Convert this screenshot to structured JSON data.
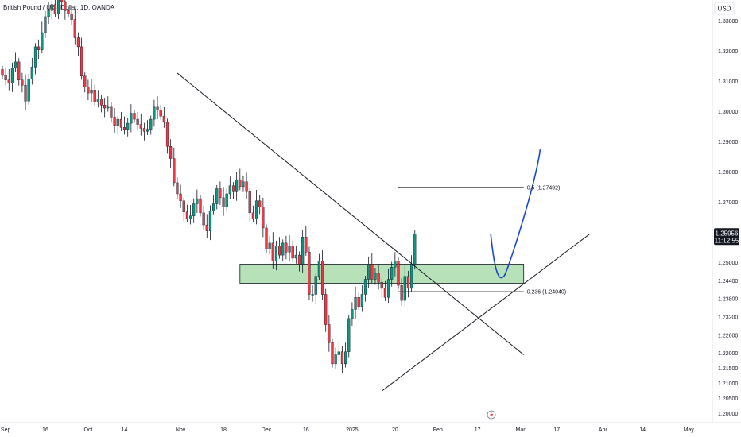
{
  "header": {
    "title": "British Pound / U.S. Dollar, 1D, OANDA"
  },
  "axis": {
    "currency": "USD",
    "last_price": "1.25956",
    "countdown": "11:12:55",
    "y_ticks": [
      "1.33000",
      "1.32000",
      "1.31000",
      "1.30000",
      "1.29000",
      "1.28000",
      "1.27000",
      "1.26000",
      "1.25000",
      "1.24400",
      "1.23800",
      "1.23200",
      "1.22600",
      "1.22000",
      "1.21500",
      "1.21000",
      "1.20500",
      "1.20000"
    ],
    "x_ticks": [
      "Sep",
      "16",
      "Oct",
      "14",
      "Nov",
      "18",
      "Dec",
      "16",
      "2025",
      "20",
      "Feb",
      "17",
      "Mar",
      "17",
      "Apr",
      "14",
      "May"
    ]
  },
  "colors": {
    "up": "#089981",
    "down": "#f23645",
    "zone_fill": "#b7e1b9",
    "projection": "#1848cc",
    "price_tag": "#131722"
  },
  "fib_levels": [
    {
      "label": "0.5 (1.27492)"
    },
    {
      "label": "0.236 (1.24040)"
    }
  ],
  "footer": {
    "timezone_icon": "lightning-icon"
  },
  "chart_data": {
    "type": "candlestick",
    "title": "British Pound / U.S. Dollar, 1D, OANDA",
    "ylabel": "USD",
    "ylim": [
      1.197,
      1.337
    ],
    "last_price": 1.25956,
    "closes": [
      1.312,
      1.3105,
      1.3095,
      1.3145,
      1.3165,
      1.3105,
      1.3088,
      1.3035,
      1.3108,
      1.3148,
      1.3215,
      1.3205,
      1.3262,
      1.3315,
      1.3335,
      1.3355,
      1.3325,
      1.3372,
      1.3365,
      1.3335,
      1.3325,
      1.3305,
      1.3245,
      1.3215,
      1.3118,
      1.3082,
      1.3062,
      1.3072,
      1.3032,
      1.3042,
      1.3022,
      1.3012,
      1.3015,
      1.2982,
      1.2955,
      1.2975,
      1.2948,
      1.2942,
      1.2962,
      1.2995,
      1.2975,
      1.2958,
      1.2945,
      1.2935,
      1.2942,
      1.2975,
      1.3015,
      1.3005,
      1.2985,
      1.2965,
      1.2885,
      1.2845,
      1.2765,
      1.2728,
      1.2705,
      1.2668,
      1.2645,
      1.2655,
      1.2695,
      1.2712,
      1.2665,
      1.2625,
      1.2605,
      1.2672,
      1.2695,
      1.2745,
      1.2715,
      1.2685,
      1.2728,
      1.2755,
      1.2735,
      1.2775,
      1.2752,
      1.2768,
      1.2735,
      1.2665,
      1.2645,
      1.2705,
      1.2685,
      1.2615,
      1.2545,
      1.2565,
      1.2505,
      1.2555,
      1.2525,
      1.2565,
      1.2535,
      1.2555,
      1.2515,
      1.2525,
      1.2495,
      1.2585,
      1.2535,
      1.2395,
      1.2395,
      1.2455,
      1.2505,
      1.2395,
      1.2295,
      1.2235,
      1.2165,
      1.2195,
      1.2205,
      1.2165,
      1.2205,
      1.2315,
      1.2345,
      1.2385,
      1.2355,
      1.2395,
      1.2445,
      1.2495,
      1.2445,
      1.2465,
      1.2435,
      1.2415,
      1.2385,
      1.2445,
      1.2485,
      1.2505,
      1.2425,
      1.2375,
      1.2455,
      1.2415,
      1.2495,
      1.2595
    ],
    "zone": {
      "top": 1.2495,
      "bottom": 1.2432
    },
    "fib": [
      {
        "ratio": 0.5,
        "price": 1.27492
      },
      {
        "ratio": 0.236,
        "price": 1.2404
      }
    ],
    "trendlines": [
      {
        "name": "descending",
        "from": {
          "bar": 53,
          "price": 1.3128
        },
        "to": {
          "bar": 158,
          "price": 1.2195
        }
      },
      {
        "name": "ascending",
        "from": {
          "bar": 115,
          "price": 1.2075
        },
        "to": {
          "bar": 178,
          "price": 1.2595
        }
      }
    ],
    "projection": {
      "start": {
        "bar": 148,
        "price": 1.2595
      },
      "low": {
        "bar": 152,
        "price": 1.2455
      },
      "end": {
        "bar": 163,
        "price": 1.2875
      }
    }
  }
}
